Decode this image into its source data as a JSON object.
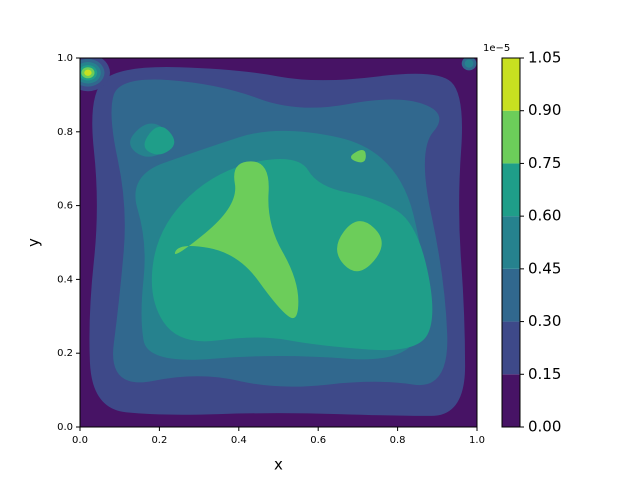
{
  "chart_data": {
    "type": "contour",
    "xlabel": "x",
    "ylabel": "y",
    "xlim": [
      0,
      1
    ],
    "ylim": [
      0,
      1
    ],
    "xticks": [
      {
        "value": 0,
        "label": "0.0"
      },
      0.2,
      0.4,
      0.6,
      0.8,
      {
        "value": 1,
        "label": "1.0"
      }
    ],
    "yticks": [
      {
        "value": 0,
        "label": "0.0"
      },
      0.2,
      0.4,
      0.6,
      0.8,
      {
        "value": 1,
        "label": "1.0"
      }
    ],
    "colorbar_offset": "1e−5",
    "levels": [
      {
        "value": 0,
        "label": "0.00"
      },
      {
        "value": 0.15,
        "label": "0.15"
      },
      {
        "value": 0.3,
        "label": "0.30"
      },
      {
        "value": 0.45,
        "label": "0.45"
      },
      {
        "value": 0.6,
        "label": "0.60"
      },
      {
        "value": 0.75,
        "label": "0.75"
      },
      {
        "value": 0.9,
        "label": "0.90"
      },
      {
        "value": 1.05,
        "label": "1.05"
      }
    ],
    "band_colors": [
      "#471365",
      "#3e4989",
      "#31688e",
      "#26828e",
      "#1f9e89",
      "#6ccd5a",
      "#c8e020"
    ]
  }
}
